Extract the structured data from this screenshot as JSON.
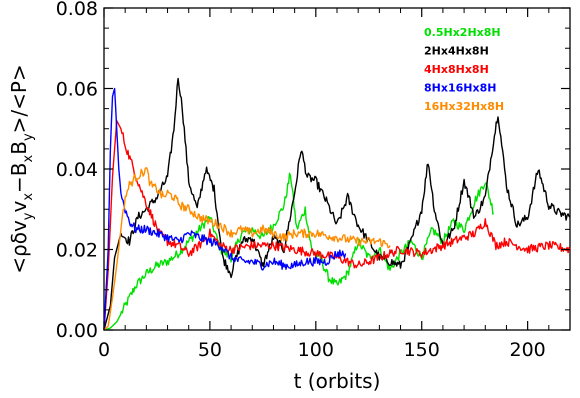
{
  "chart_data": {
    "type": "line",
    "title": "",
    "xlabel": "t (orbits)",
    "ylabel_parts": [
      "<ρδv",
      "y",
      "v",
      "x",
      "−B",
      "x",
      "B",
      "y",
      ">/<P>"
    ],
    "xlim": [
      0,
      220
    ],
    "ylim": [
      0,
      0.08
    ],
    "xticks": [
      0,
      50,
      100,
      150,
      200
    ],
    "xtick_labels": [
      "0",
      "50",
      "100",
      "150",
      "200"
    ],
    "yticks": [
      0,
      0.02,
      0.04,
      0.06,
      0.08
    ],
    "ytick_labels": [
      "0.00",
      "0.02",
      "0.04",
      "0.06",
      "0.08"
    ],
    "grid": false,
    "legend_position": "top-right",
    "series": [
      {
        "name": "0.5Hx2Hx8H",
        "color": "#00e000",
        "x": [
          0,
          3,
          6,
          10,
          15,
          20,
          25,
          30,
          35,
          40,
          45,
          50,
          55,
          60,
          65,
          70,
          75,
          80,
          85,
          88,
          91,
          95,
          98,
          102,
          106,
          110,
          115,
          120,
          125,
          130,
          135,
          140,
          145,
          150,
          155,
          160,
          165,
          170,
          175,
          180,
          184
        ],
        "y": [
          0,
          0.0005,
          0.002,
          0.006,
          0.011,
          0.014,
          0.016,
          0.017,
          0.019,
          0.022,
          0.025,
          0.028,
          0.02,
          0.018,
          0.024,
          0.025,
          0.023,
          0.026,
          0.031,
          0.039,
          0.025,
          0.03,
          0.02,
          0.018,
          0.013,
          0.011,
          0.014,
          0.022,
          0.018,
          0.02,
          0.015,
          0.019,
          0.022,
          0.018,
          0.025,
          0.022,
          0.027,
          0.025,
          0.032,
          0.037,
          0.029
        ]
      },
      {
        "name": "2Hx4Hx8H",
        "color": "#000000",
        "x": [
          0,
          3,
          5,
          8,
          12,
          16,
          20,
          25,
          30,
          33,
          35,
          37,
          40,
          44,
          48,
          52,
          56,
          60,
          65,
          70,
          75,
          80,
          85,
          90,
          93,
          96,
          100,
          105,
          110,
          115,
          120,
          125,
          130,
          135,
          140,
          145,
          150,
          153,
          156,
          160,
          165,
          170,
          175,
          180,
          183,
          186,
          190,
          195,
          200,
          205,
          210,
          215,
          220
        ],
        "y": [
          0,
          0.006,
          0.018,
          0.024,
          0.022,
          0.028,
          0.03,
          0.033,
          0.038,
          0.05,
          0.063,
          0.055,
          0.037,
          0.03,
          0.04,
          0.035,
          0.018,
          0.014,
          0.022,
          0.023,
          0.016,
          0.023,
          0.02,
          0.034,
          0.045,
          0.038,
          0.037,
          0.032,
          0.026,
          0.033,
          0.026,
          0.022,
          0.018,
          0.017,
          0.016,
          0.022,
          0.03,
          0.042,
          0.03,
          0.021,
          0.025,
          0.037,
          0.028,
          0.033,
          0.044,
          0.054,
          0.036,
          0.026,
          0.028,
          0.04,
          0.031,
          0.029,
          0.028
        ]
      },
      {
        "name": "4Hx8Hx8H",
        "color": "#ff0000",
        "x": [
          0,
          2,
          4,
          6,
          8,
          10,
          14,
          18,
          22,
          26,
          30,
          35,
          40,
          45,
          50,
          55,
          60,
          70,
          80,
          90,
          100,
          110,
          120,
          130,
          140,
          150,
          160,
          170,
          175,
          180,
          185,
          190,
          200,
          210,
          220
        ],
        "y": [
          0,
          0.015,
          0.038,
          0.052,
          0.05,
          0.046,
          0.04,
          0.034,
          0.029,
          0.024,
          0.022,
          0.021,
          0.019,
          0.021,
          0.024,
          0.021,
          0.02,
          0.021,
          0.021,
          0.02,
          0.019,
          0.018,
          0.016,
          0.018,
          0.02,
          0.019,
          0.021,
          0.023,
          0.024,
          0.027,
          0.021,
          0.022,
          0.02,
          0.021,
          0.02
        ]
      },
      {
        "name": "8Hx16Hx8H",
        "color": "#0000ff",
        "x": [
          0,
          2,
          3,
          4,
          5,
          6,
          7,
          8,
          10,
          12,
          15,
          20,
          25,
          30,
          35,
          40,
          45,
          50,
          55,
          60,
          65,
          70,
          75,
          80,
          85,
          90,
          95,
          100,
          105,
          110,
          114
        ],
        "y": [
          0,
          0.02,
          0.045,
          0.058,
          0.06,
          0.05,
          0.04,
          0.034,
          0.03,
          0.027,
          0.025,
          0.025,
          0.024,
          0.023,
          0.022,
          0.024,
          0.023,
          0.022,
          0.021,
          0.018,
          0.017,
          0.017,
          0.016,
          0.017,
          0.016,
          0.016,
          0.017,
          0.017,
          0.017,
          0.019,
          0.019
        ]
      },
      {
        "name": "16Hx32Hx8H",
        "color": "#ff8c00",
        "x": [
          0,
          2,
          4,
          6,
          8,
          10,
          12,
          15,
          18,
          20,
          22,
          25,
          28,
          30,
          33,
          36,
          40,
          45,
          50,
          55,
          60,
          65,
          70,
          75,
          80,
          85,
          90,
          100,
          110,
          120,
          130,
          135
        ],
        "y": [
          0,
          0.001,
          0.008,
          0.016,
          0.025,
          0.033,
          0.036,
          0.038,
          0.039,
          0.04,
          0.036,
          0.035,
          0.033,
          0.034,
          0.033,
          0.031,
          0.03,
          0.028,
          0.027,
          0.026,
          0.024,
          0.025,
          0.024,
          0.025,
          0.024,
          0.023,
          0.024,
          0.024,
          0.023,
          0.022,
          0.022,
          0.021
        ]
      }
    ]
  }
}
